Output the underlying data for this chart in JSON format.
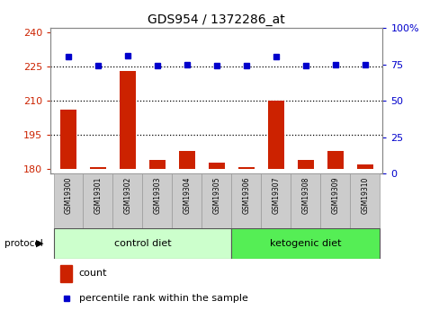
{
  "title": "GDS954 / 1372286_at",
  "samples": [
    "GSM19300",
    "GSM19301",
    "GSM19302",
    "GSM19303",
    "GSM19304",
    "GSM19305",
    "GSM19306",
    "GSM19307",
    "GSM19308",
    "GSM19309",
    "GSM19310"
  ],
  "count_values": [
    206,
    181,
    223,
    184,
    188,
    183,
    181,
    210,
    184,
    188,
    182
  ],
  "percentile_values": [
    80,
    74,
    81,
    74,
    75,
    74,
    74,
    80,
    74,
    75,
    75
  ],
  "ylim_left": [
    178,
    242
  ],
  "yticks_left": [
    180,
    195,
    210,
    225,
    240
  ],
  "ylim_right": [
    0,
    100
  ],
  "yticks_right": [
    0,
    25,
    50,
    75,
    100
  ],
  "ytick_labels_right": [
    "0",
    "25",
    "50",
    "75",
    "100%"
  ],
  "hlines": [
    195,
    210,
    225
  ],
  "bar_color": "#cc2200",
  "dot_color": "#0000cc",
  "bar_bottom": 180,
  "control_diet_indices": [
    0,
    1,
    2,
    3,
    4,
    5
  ],
  "ketogenic_diet_indices": [
    6,
    7,
    8,
    9,
    10
  ],
  "control_label": "control diet",
  "ketogenic_label": "ketogenic diet",
  "protocol_label": "protocol",
  "legend_count_label": "count",
  "legend_percentile_label": "percentile rank within the sample",
  "title_fontsize": 10,
  "axis_left_color": "#cc2200",
  "axis_right_color": "#0000cc",
  "bar_width": 0.55,
  "background_color": "#ffffff",
  "plot_bg_color": "#ffffff",
  "sample_bg_color": "#cccccc",
  "control_bg": "#ccffcc",
  "ketogenic_bg": "#55ee55"
}
